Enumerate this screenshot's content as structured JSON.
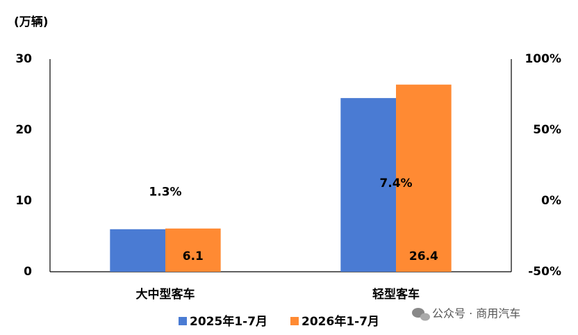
{
  "chart_data": {
    "type": "bar",
    "y_label": "(万辆)",
    "categories": [
      "大中型客车",
      "轻型客车"
    ],
    "series": [
      {
        "name": "2025年1-7月",
        "color": "#4a7bd3",
        "values": [
          6.0,
          24.5
        ]
      },
      {
        "name": "2026年1-7月",
        "color": "#ff8a33",
        "values": [
          6.1,
          26.4
        ],
        "value_labels": [
          "6.1",
          "26.4"
        ]
      },
      {
        "axis": "y2",
        "values": [
          1.3,
          7.4
        ],
        "value_labels": [
          "1.3%",
          "7.4%"
        ]
      }
    ],
    "ylim": [
      0,
      30
    ],
    "yticks": [
      0,
      10,
      20,
      30
    ],
    "y2lim": [
      -50,
      100
    ],
    "y2ticks": [
      {
        "value": -50,
        "label": "-50%"
      },
      {
        "value": 0,
        "label": "0%"
      },
      {
        "value": 50,
        "label": "50%"
      },
      {
        "value": 100,
        "label": "100%"
      }
    ],
    "grid": false,
    "legend": "bottom",
    "watermark": "公众号 · 商用汽车"
  }
}
